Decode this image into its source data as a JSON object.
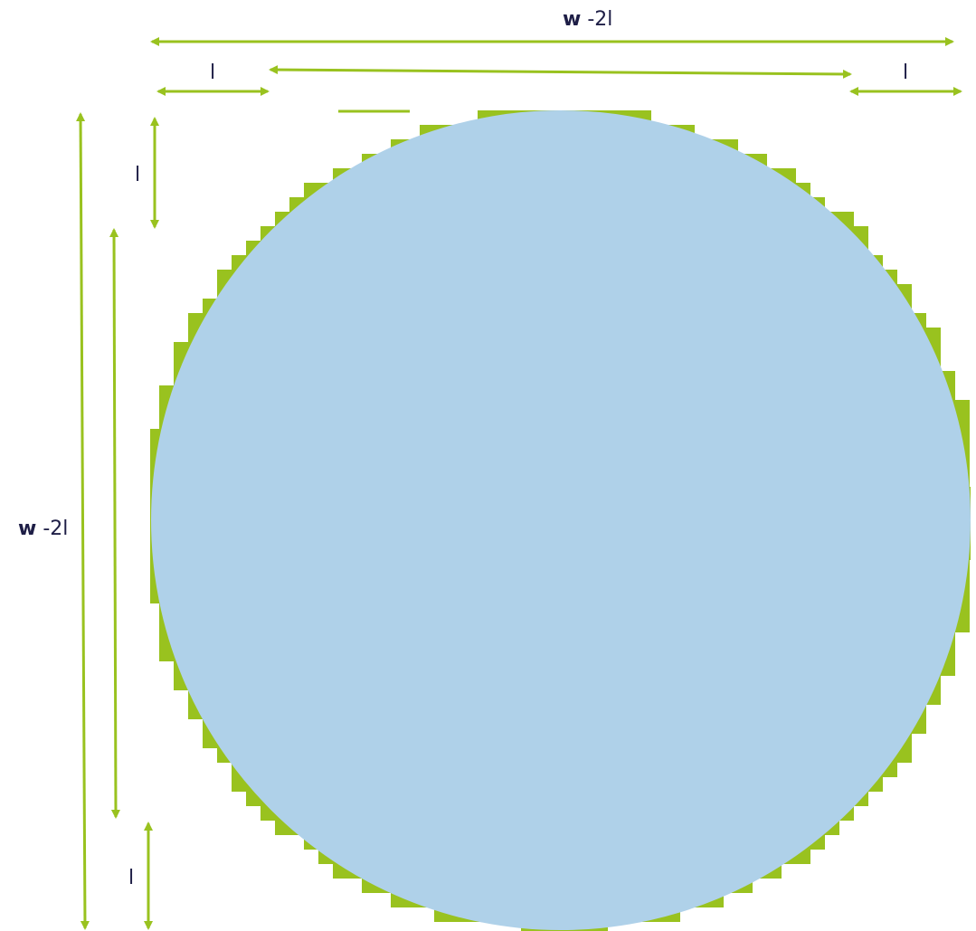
{
  "colors": {
    "circle": "#afd1e9",
    "staircase": "#99c21f",
    "dimension": "#99c21f",
    "text": "#1e1e46"
  },
  "labels": {
    "top_total": {
      "bold": "w",
      "rest": " -2l"
    },
    "left_total": {
      "bold": "w",
      "rest": " -2l"
    },
    "top_left_l": "l",
    "top_right_l": "l",
    "left_top_l": "l",
    "left_bottom_l": "l"
  }
}
